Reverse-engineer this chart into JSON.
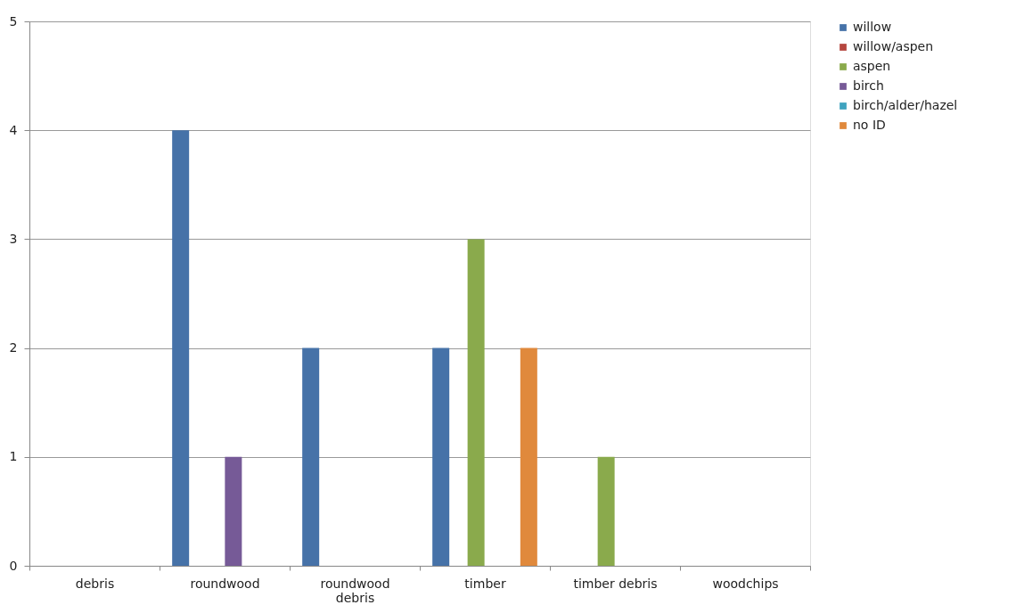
{
  "chart_data": {
    "type": "bar",
    "categories": [
      "debris",
      "roundwood",
      "roundwood debris",
      "timber",
      "timber debris",
      "woodchips"
    ],
    "series": [
      {
        "name": "willow",
        "color": "#4672a8",
        "values": [
          0,
          4,
          2,
          2,
          0,
          0
        ]
      },
      {
        "name": "willow/aspen",
        "color": "#b5463f",
        "values": [
          0,
          0,
          0,
          0,
          0,
          0
        ]
      },
      {
        "name": "aspen",
        "color": "#8aaa4c",
        "values": [
          0,
          0,
          0,
          3,
          1,
          0
        ]
      },
      {
        "name": "birch",
        "color": "#765a97",
        "values": [
          0,
          1,
          0,
          0,
          0,
          0
        ]
      },
      {
        "name": "birch/alder/hazel",
        "color": "#3fa3bf",
        "values": [
          0,
          0,
          0,
          0,
          0,
          0
        ]
      },
      {
        "name": "no ID",
        "color": "#e0893c",
        "values": [
          0,
          0,
          0,
          2,
          0,
          0
        ]
      }
    ],
    "ylim": [
      0,
      5
    ],
    "yticks": [
      0,
      1,
      2,
      3,
      4,
      5
    ],
    "grid": "y",
    "legend": "right"
  }
}
